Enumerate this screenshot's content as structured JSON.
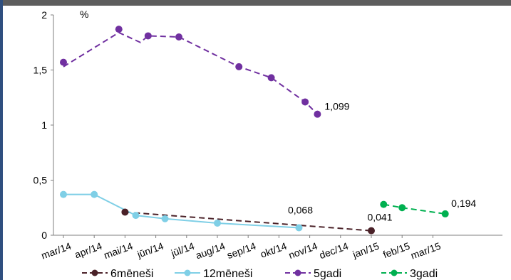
{
  "chart_data": {
    "type": "line",
    "unit_label": "%",
    "x_tick_labels": [
      "mar/14",
      "apr/14",
      "mai/14",
      "jūn/14",
      "jūl/14",
      "aug/14",
      "sep/14",
      "okt/14",
      "nov/14",
      "dec/14",
      "jan/15",
      "feb/15",
      "mar/15"
    ],
    "y_tick_labels": [
      "0",
      "0,5",
      "1",
      "1,5",
      "2"
    ],
    "ylim": [
      0,
      2
    ],
    "grid": false,
    "legend_placement": "bottom",
    "series": [
      {
        "name": "6mēneši",
        "color": "#4a2128",
        "dashed": true,
        "points": [
          [
            2,
            0.21
          ],
          [
            10,
            0.041
          ]
        ],
        "line": [
          [
            2,
            0.21
          ],
          [
            10,
            0.041
          ]
        ]
      },
      {
        "name": "12mēneši",
        "color": "#7fcfe6",
        "dashed": false,
        "points": [
          [
            0,
            0.37
          ],
          [
            1,
            0.37
          ],
          [
            2.35,
            0.18
          ],
          [
            3.3,
            0.15
          ],
          [
            5,
            0.11
          ],
          [
            7.65,
            0.068
          ]
        ],
        "line": [
          [
            0,
            0.37
          ],
          [
            1,
            0.37
          ],
          [
            2.35,
            0.18
          ],
          [
            3.3,
            0.15
          ],
          [
            5,
            0.11
          ],
          [
            7.65,
            0.068
          ]
        ]
      },
      {
        "name": "5gadi",
        "color": "#7030a0",
        "dashed": true,
        "points": [
          [
            0,
            1.57
          ],
          [
            1.8,
            1.87
          ],
          [
            2.75,
            1.81
          ],
          [
            3.75,
            1.8
          ],
          [
            5.7,
            1.53
          ],
          [
            6.75,
            1.43
          ],
          [
            7.85,
            1.21
          ],
          [
            8.25,
            1.099
          ]
        ],
        "line": [
          [
            0,
            1.53
          ],
          [
            1.8,
            1.84
          ],
          [
            2.5,
            1.75
          ],
          [
            2.75,
            1.81
          ],
          [
            3.75,
            1.8
          ],
          [
            5.7,
            1.53
          ],
          [
            6.75,
            1.43
          ],
          [
            7.85,
            1.21
          ],
          [
            8.25,
            1.099
          ]
        ]
      },
      {
        "name": "3gadi",
        "color": "#00b050",
        "dashed": true,
        "points": [
          [
            10.4,
            0.28
          ],
          [
            11,
            0.25
          ],
          [
            12.4,
            0.194
          ]
        ],
        "line": [
          [
            10.4,
            0.28
          ],
          [
            11,
            0.25
          ],
          [
            12.4,
            0.194
          ]
        ]
      }
    ],
    "annotations": [
      {
        "text": "1,099",
        "x": 8.25,
        "y": 1.099
      },
      {
        "text": "0,068",
        "x": 7.65,
        "y": 0.068
      },
      {
        "text": "0,041",
        "x": 10,
        "y": 0.041
      },
      {
        "text": "0,194",
        "x": 12.4,
        "y": 0.194
      }
    ]
  }
}
